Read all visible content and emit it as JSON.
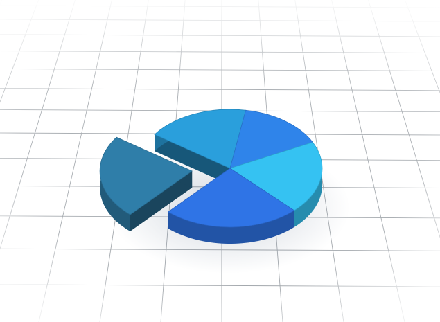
{
  "scene": {
    "subject": "pie-chart-3d",
    "background": "#ffffff",
    "grid_color": "#8f959b"
  },
  "chart_data": {
    "type": "pie",
    "title": "",
    "exploded_slice": 4,
    "slices": [
      {
        "value": 18,
        "color": "#2a9fdc"
      },
      {
        "value": 15,
        "color": "#2f84ea"
      },
      {
        "value": 20,
        "color": "#35c2f2"
      },
      {
        "value": 24,
        "color": "#2f74e6"
      },
      {
        "value": 23,
        "color": "#2f7ea9"
      }
    ]
  }
}
